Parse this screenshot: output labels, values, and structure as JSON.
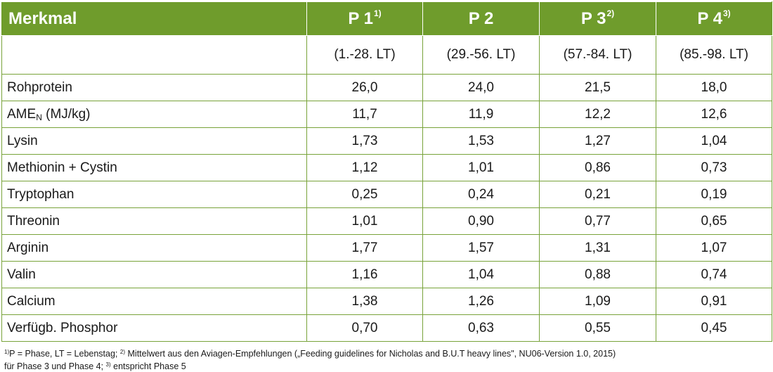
{
  "header": {
    "merkmal": "Merkmal",
    "phases": [
      {
        "label": "P 1",
        "note": "1)"
      },
      {
        "label": "P 2",
        "note": ""
      },
      {
        "label": "P 3",
        "note": "2)"
      },
      {
        "label": "P 4",
        "note": "3)"
      }
    ]
  },
  "subheader": [
    "(1.-28. LT)",
    "(29.-56. LT)",
    "(57.-84. LT)",
    "(85.-98. LT)"
  ],
  "rows": [
    {
      "label": "Rohprotein",
      "values": [
        "26,0",
        "24,0",
        "21,5",
        "18,0"
      ]
    },
    {
      "label_main": "AME",
      "label_sub": "N",
      "label_tail": " (MJ/kg)",
      "values": [
        "11,7",
        "11,9",
        "12,2",
        "12,6"
      ]
    },
    {
      "label": "Lysin",
      "values": [
        "1,73",
        "1,53",
        "1,27",
        "1,04"
      ]
    },
    {
      "label": "Methionin + Cystin",
      "values": [
        "1,12",
        "1,01",
        "0,86",
        "0,73"
      ]
    },
    {
      "label": "Tryptophan",
      "values": [
        "0,25",
        "0,24",
        "0,21",
        "0,19"
      ]
    },
    {
      "label": "Threonin",
      "values": [
        "1,01",
        "0,90",
        "0,77",
        "0,65"
      ]
    },
    {
      "label": "Arginin",
      "values": [
        "1,77",
        "1,57",
        "1,31",
        "1,07"
      ]
    },
    {
      "label": "Valin",
      "values": [
        "1,16",
        "1,04",
        "0,88",
        "0,74"
      ]
    },
    {
      "label": "Calcium",
      "values": [
        "1,38",
        "1,26",
        "1,09",
        "0,91"
      ]
    },
    {
      "label": "Verfügb. Phosphor",
      "values": [
        "0,70",
        "0,63",
        "0,55",
        "0,45"
      ]
    }
  ],
  "footnotes": {
    "n1_mark": "1)",
    "n1_text": "P = Phase, LT = Lebenstag; ",
    "n2_mark": "2)",
    "n2_text": "Mittelwert aus den Aviagen-Empfehlungen („Feeding guidelines for Nicholas and B.U.T heavy lines\", NU06-Version 1.0, 2015)",
    "n2_text_cont": "für Phase 3 und Phase 4; ",
    "n3_mark": "3)",
    "n3_text": "entspricht Phase 5"
  },
  "colors": {
    "header_bg": "#6f9c2c",
    "grid_line": "#78a33a",
    "header_text": "#ffffff"
  }
}
